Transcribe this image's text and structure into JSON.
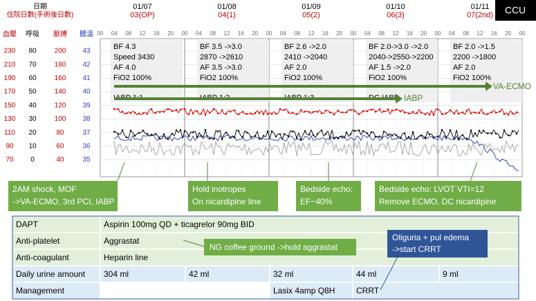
{
  "header": {
    "date_label": "日期",
    "day_label": "住院日數(手術後日數)",
    "unit": "CCU",
    "days": [
      {
        "date": "01/07",
        "day": "03(OP)"
      },
      {
        "date": "01/08",
        "day": "04(1)"
      },
      {
        "date": "01/09",
        "day": "05(2)"
      },
      {
        "date": "01/10",
        "day": "06(3)"
      },
      {
        "date": "01/11",
        "day": "07(2nd)"
      }
    ],
    "hours": [
      "00",
      "04",
      "08",
      "12",
      "16",
      "20"
    ]
  },
  "scales": {
    "headers": [
      "血壓",
      "呼吸",
      "脈搏",
      "體溫"
    ],
    "rows": [
      [
        230,
        80,
        200,
        43
      ],
      [
        210,
        70,
        180,
        42
      ],
      [
        190,
        60,
        160,
        41
      ],
      [
        170,
        50,
        140,
        40
      ],
      [
        150,
        40,
        120,
        39
      ],
      [
        130,
        30,
        100,
        38
      ],
      [
        110,
        20,
        80,
        37
      ],
      [
        90,
        10,
        60,
        36
      ],
      [
        70,
        0,
        40,
        35
      ]
    ]
  },
  "settings": [
    [
      "BF 4.3",
      "Speed 3430",
      "AF 4.0",
      "FiO2 100%",
      "IABP 1:1"
    ],
    [
      "BF 3.5 ->3.0",
      "2870 ->2610",
      "AF 3.5 ->3.0",
      "FiO2 100%",
      "IABP 1:2"
    ],
    [
      "BF 2.6 ->2.0",
      "2410 ->2040",
      "AF 2.0",
      "FiO2 100%",
      "IABP 1:3"
    ],
    [
      "BF 2.0->3.0 ->2.0",
      "2040->2550->2200",
      "AF 1.5 ->2.0",
      "FiO2 100%",
      "DC IABP"
    ],
    [
      "BF 2.0 ->1.5",
      "2200 ->1800",
      "AF 2.0",
      "FiO2 100%"
    ]
  ],
  "arrows": {
    "iabp": "IABP",
    "ecmo": "VA-ECMO"
  },
  "events": [
    [
      "2AM shock, MOF",
      "->VA-ECMO, 3rd PCI, IABP"
    ],
    [
      "Hold inotropes",
      "On nicardipine line"
    ],
    [
      "Bedside echo:",
      "EF~40%"
    ],
    [
      "Bedside echo: LVOT VTI=12",
      "Remove ECMO, DC nicardipine"
    ]
  ],
  "table": {
    "dapt": {
      "label": "DAPT",
      "text": "Aspirin 100mg QD + ticagrelor 90mg BID"
    },
    "antiplatelet": {
      "label": "Anti-platelet",
      "text": "Aggrastat"
    },
    "anticoagulant": {
      "label": "Anti-coagulant",
      "text": "Heparin line"
    },
    "urine": {
      "label": "Daily urine amount",
      "values": [
        "304 ml",
        "42 ml",
        "32 ml",
        "44 ml",
        "9 ml"
      ]
    },
    "management": {
      "label": "Management",
      "lasix": "Lasix 4amp Q8H",
      "crrt": "CRRT"
    }
  },
  "callouts": {
    "ng": "NG coffee ground ->hold aggrastat",
    "oliguria": [
      "Oliguria + pul edema",
      "->start CRRT"
    ]
  }
}
